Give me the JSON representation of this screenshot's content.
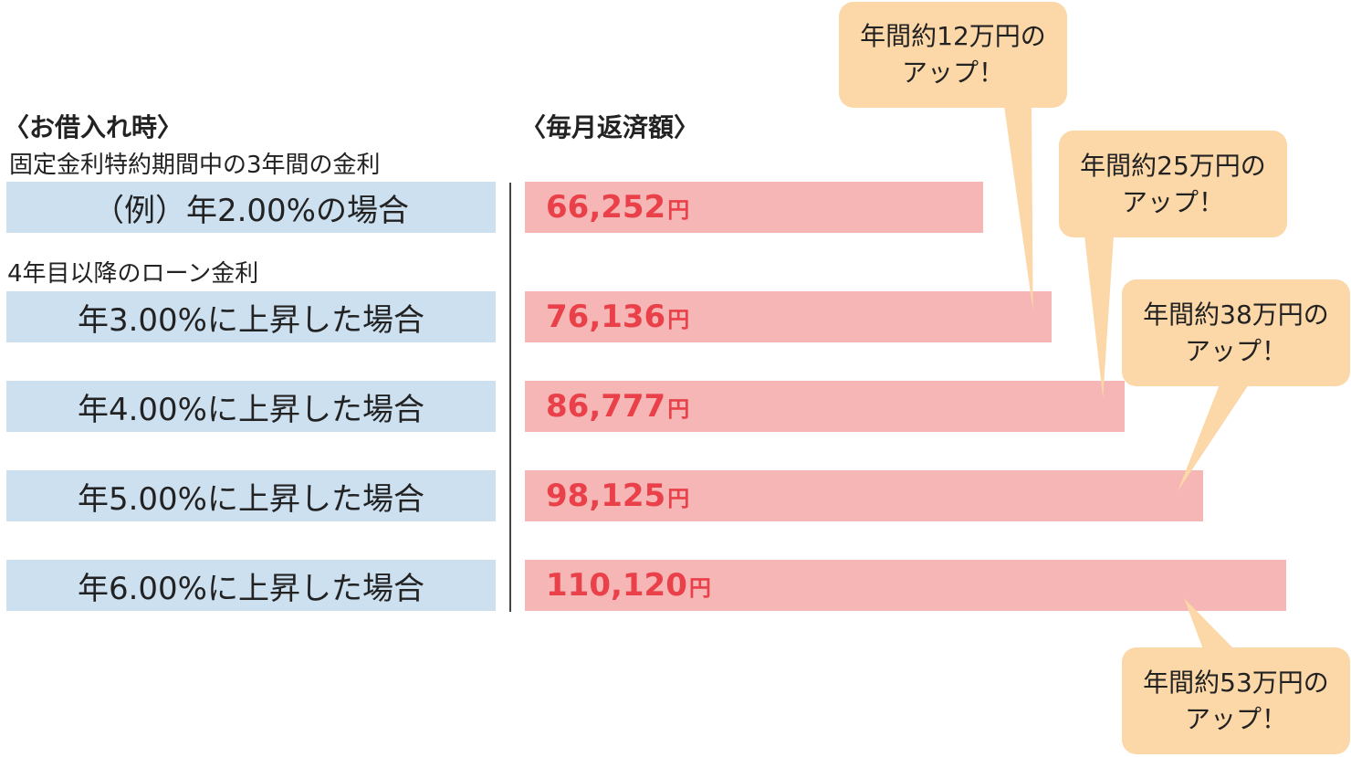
{
  "headings": {
    "left": "〈お借入れ時〉",
    "right": "〈毎月返済額〉"
  },
  "sublabels": {
    "initial": "固定金利特約期間中の3年間の金利",
    "later": "4年目以降のローン金利"
  },
  "colors": {
    "label_bg": "#cde0f0",
    "bar_fill": "#f5b6b5",
    "value_text": "#e9404a",
    "callout_fill": "#fcd7a8"
  },
  "chart_data": {
    "type": "bar",
    "orientation": "horizontal",
    "categories": [
      "（例）年2.00%の場合",
      "年3.00%に上昇した場合",
      "年4.00%に上昇した場合",
      "年5.00%に上昇した場合",
      "年6.00%に上昇した場合"
    ],
    "values": [
      66252,
      76136,
      86777,
      98125,
      110120
    ],
    "value_labels": [
      "66,252",
      "76,136",
      "86,777",
      "98,125",
      "110,120"
    ],
    "unit": "円",
    "annotations": [
      {
        "target": 1,
        "line1": "年間約12万円の",
        "line2": "アップ！"
      },
      {
        "target": 2,
        "line1": "年間約25万円の",
        "line2": "アップ！"
      },
      {
        "target": 3,
        "line1": "年間約38万円の",
        "line2": "アップ！"
      },
      {
        "target": 4,
        "line1": "年間約53万円の",
        "line2": "アップ！"
      }
    ]
  }
}
